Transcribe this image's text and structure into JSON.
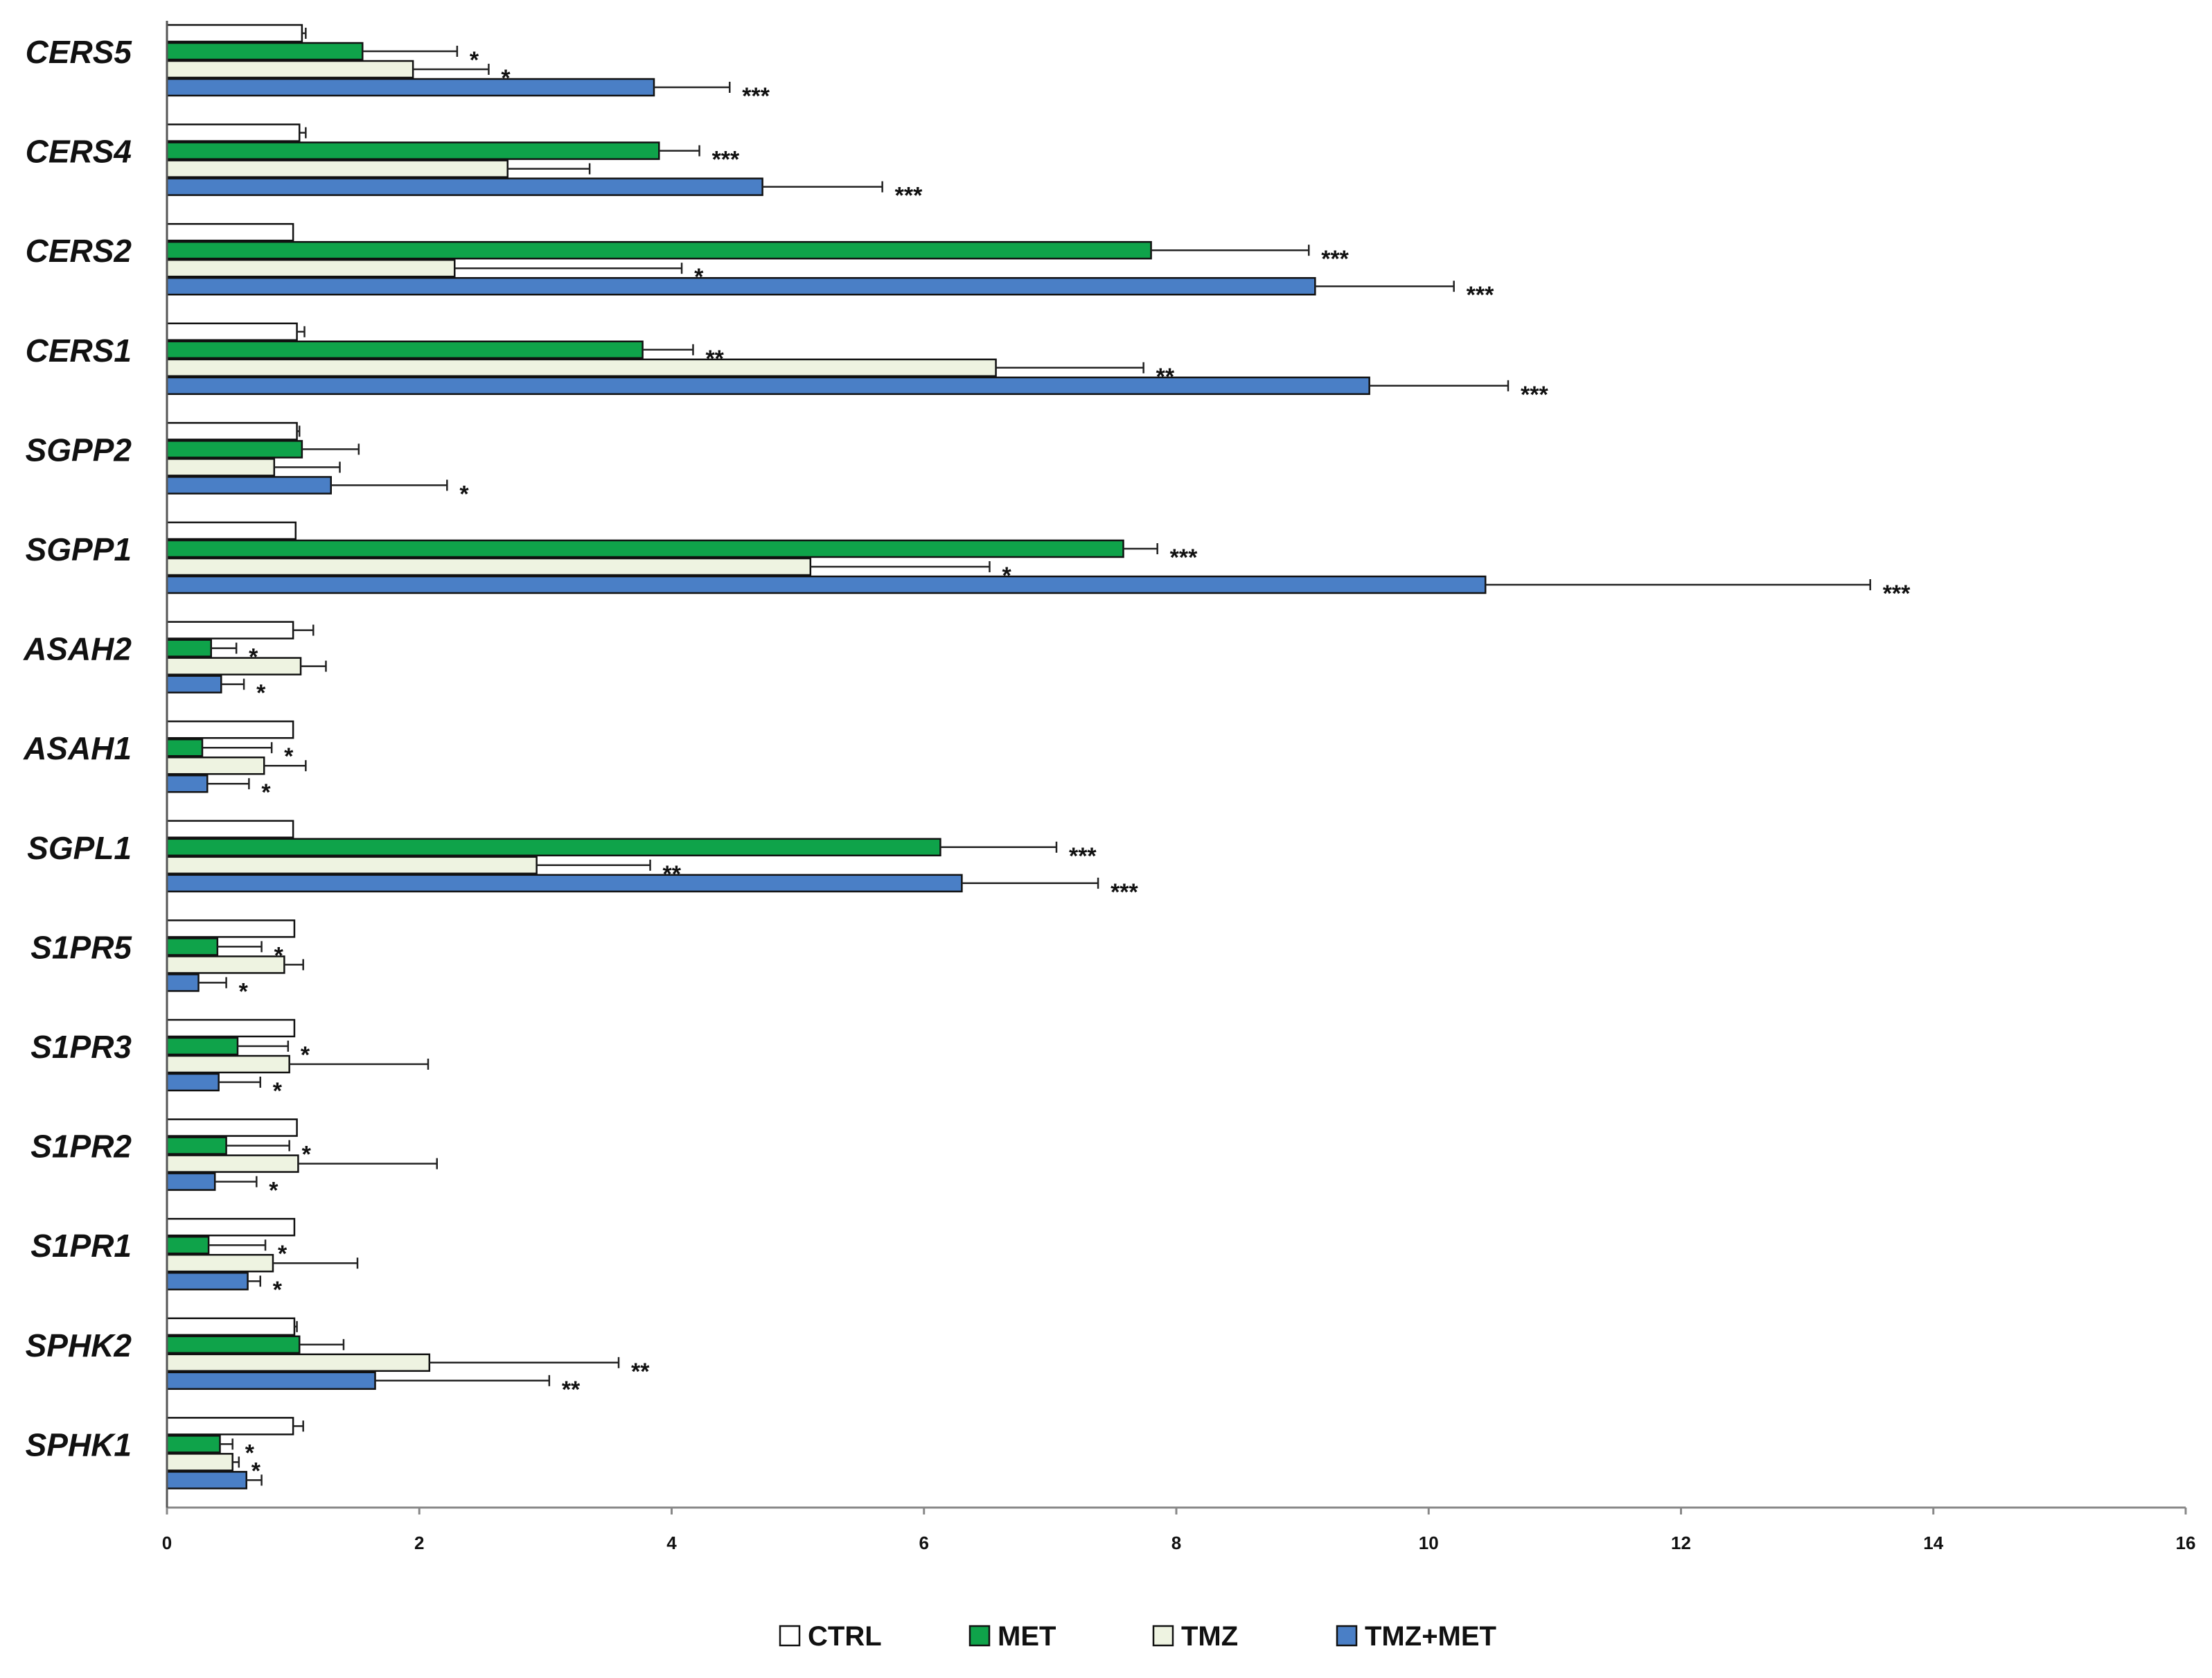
{
  "chart_data": {
    "type": "bar",
    "orientation": "horizontal",
    "title": "",
    "xlabel": "",
    "ylabel": "",
    "xlim": [
      0,
      16
    ],
    "xticks": [
      "0",
      "2",
      "4",
      "6",
      "8",
      "10",
      "12",
      "14",
      "16"
    ],
    "categories": [
      "CERS5",
      "CERS4",
      "CERS2",
      "CERS1",
      "SGPP2",
      "SGPP1",
      "ASAH2",
      "ASAH1",
      "SGPL1",
      "S1PR5",
      "S1PR3",
      "S1PR2",
      "S1PR1",
      "SPHK2",
      "SPHK1"
    ],
    "legend_position": "bottom",
    "series": [
      {
        "name": "CTRL",
        "color": "#ffffff",
        "values": [
          1.07,
          1.05,
          1.0,
          1.03,
          1.03,
          1.02,
          1.0,
          1.0,
          1.0,
          1.01,
          1.01,
          1.03,
          1.01,
          1.01,
          1.0
        ],
        "errors": [
          0.03,
          0.05,
          0.0,
          0.06,
          0.02,
          0.0,
          0.16,
          0.0,
          0.0,
          0.0,
          0.0,
          0.0,
          0.0,
          0.02,
          0.08
        ],
        "significance": [
          "",
          "",
          "",
          "",
          "",
          "",
          "",
          "",
          "",
          "",
          "",
          "",
          "",
          "",
          ""
        ]
      },
      {
        "name": "MET",
        "color": "#0fa34a",
        "values": [
          1.55,
          3.9,
          7.8,
          3.77,
          1.07,
          7.58,
          0.35,
          0.28,
          6.13,
          0.4,
          0.56,
          0.47,
          0.33,
          1.05,
          0.42
        ],
        "errors": [
          0.75,
          0.32,
          1.25,
          0.4,
          0.45,
          0.27,
          0.2,
          0.55,
          0.92,
          0.35,
          0.4,
          0.5,
          0.45,
          0.35,
          0.1
        ],
        "significance": [
          "*",
          "***",
          "***",
          "**",
          "",
          "***",
          "*",
          "*",
          "***",
          "*",
          "*",
          "*",
          "*",
          "",
          "*"
        ]
      },
      {
        "name": "TMZ",
        "color": "#eef3e1",
        "values": [
          1.95,
          2.7,
          2.28,
          6.57,
          0.85,
          5.1,
          1.06,
          0.77,
          2.93,
          0.93,
          0.97,
          1.04,
          0.84,
          2.08,
          0.52
        ],
        "errors": [
          0.6,
          0.65,
          1.8,
          1.17,
          0.52,
          1.42,
          0.2,
          0.33,
          0.9,
          0.15,
          1.1,
          1.1,
          0.67,
          1.5,
          0.05
        ],
        "significance": [
          "*",
          "",
          "*",
          "**",
          "",
          "*",
          "",
          "",
          "**",
          "",
          "",
          "",
          "",
          "**",
          "*"
        ]
      },
      {
        "name": "TMZ+MET",
        "color": "#4a7fc6",
        "values": [
          3.86,
          4.72,
          9.1,
          9.53,
          1.3,
          10.45,
          0.43,
          0.32,
          6.3,
          0.25,
          0.41,
          0.38,
          0.64,
          1.65,
          0.63
        ],
        "errors": [
          0.6,
          0.95,
          1.1,
          1.1,
          0.92,
          3.05,
          0.18,
          0.33,
          1.08,
          0.22,
          0.33,
          0.33,
          0.1,
          1.38,
          0.12
        ],
        "significance": [
          "***",
          "***",
          "***",
          "***",
          "*",
          "***",
          "*",
          "*",
          "***",
          "*",
          "*",
          "*",
          "*",
          "**",
          ""
        ]
      }
    ]
  }
}
